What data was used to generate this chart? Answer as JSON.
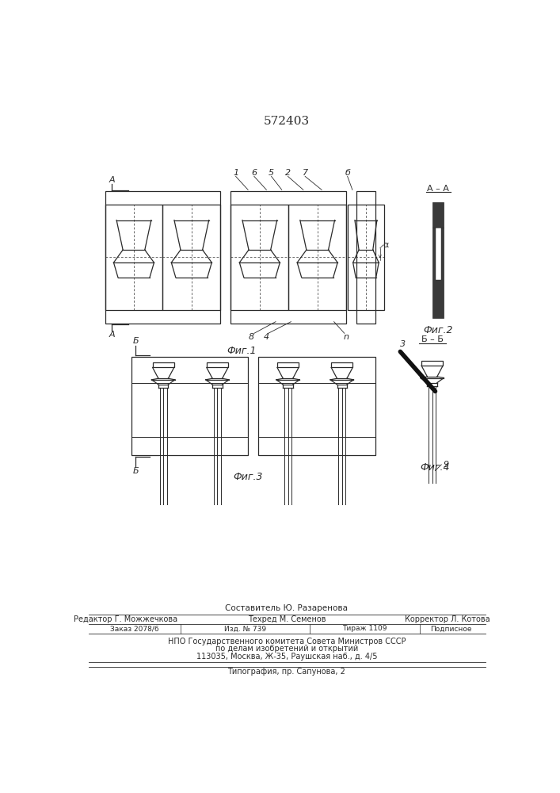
{
  "title": "572403",
  "bg_color": "#ffffff",
  "line_color": "#2a2a2a",
  "fig_label_fig1": "Фиг.1",
  "fig_label_fig2": "Фиг.2",
  "fig_label_fig3": "Фиг.3",
  "fig_label_fig4": "Фиг.4",
  "footer_composer": "Составитель Ю. Разаренова",
  "footer_editor": "Редактор Г. Можжечкова",
  "footer_tech": "Техред М. Семенов",
  "footer_corrector": "Корректор Л. Котова",
  "footer_order": "Заказ 2078/6",
  "footer_izd": "Изд. № 739",
  "footer_tirazh": "Тираж 1109",
  "footer_podp": "Подписное",
  "footer_npo": "НПО Государственного комитета Совета Министров СССР",
  "footer_dela": "по делам изобретений и открытий",
  "footer_addr": "113035, Москва, Ж-35, Раушская наб., д. 4/5",
  "footer_typo": "Типография, пр. Сапунова, 2"
}
